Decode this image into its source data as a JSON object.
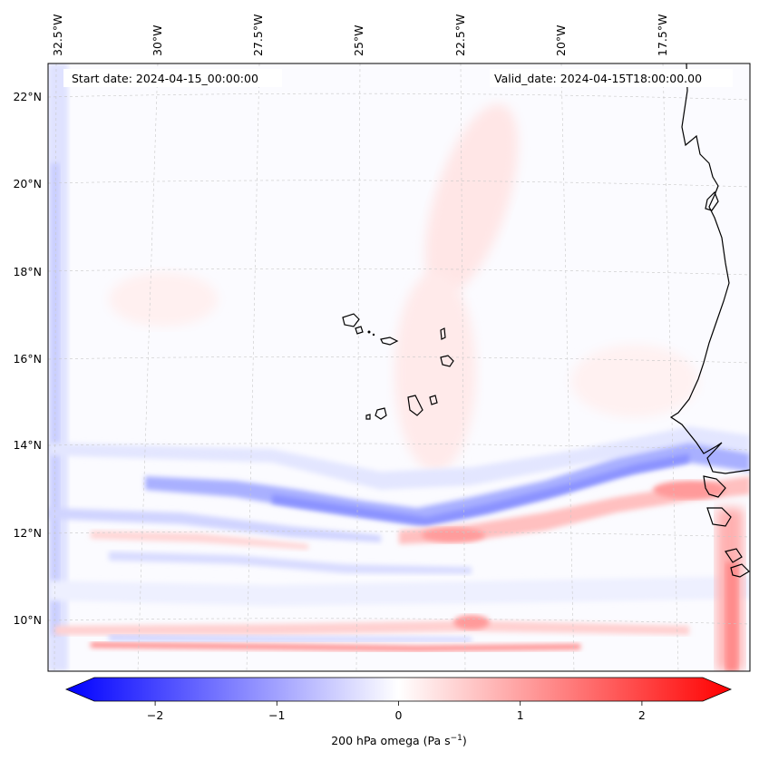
{
  "map": {
    "start_date_label": "Start date: 2024-04-15_00:00:00",
    "valid_date_label": "Valid_date: 2024-04-15T18:00:00.00",
    "longitude_labels": [
      "32.5°W",
      "30°W",
      "27.5°W",
      "25°W",
      "22.5°W",
      "20°W",
      "17.5°W"
    ],
    "latitude_labels": [
      "22°N",
      "20°N",
      "18°N",
      "16°N",
      "14°N",
      "12°N",
      "10°N"
    ],
    "field_colors": {
      "negative": "#0000ff",
      "zero": "#ffffff",
      "positive": "#ff0000"
    }
  },
  "colorbar": {
    "label": "200 hPa omega (Pa s",
    "label_superscript": "−1",
    "label_suffix": ")",
    "tick_labels": [
      "−2",
      "−1",
      "0",
      "1",
      "2"
    ],
    "tick_values": [
      -2,
      -1,
      0,
      1,
      2
    ],
    "range": [
      -2.5,
      2.5
    ]
  }
}
